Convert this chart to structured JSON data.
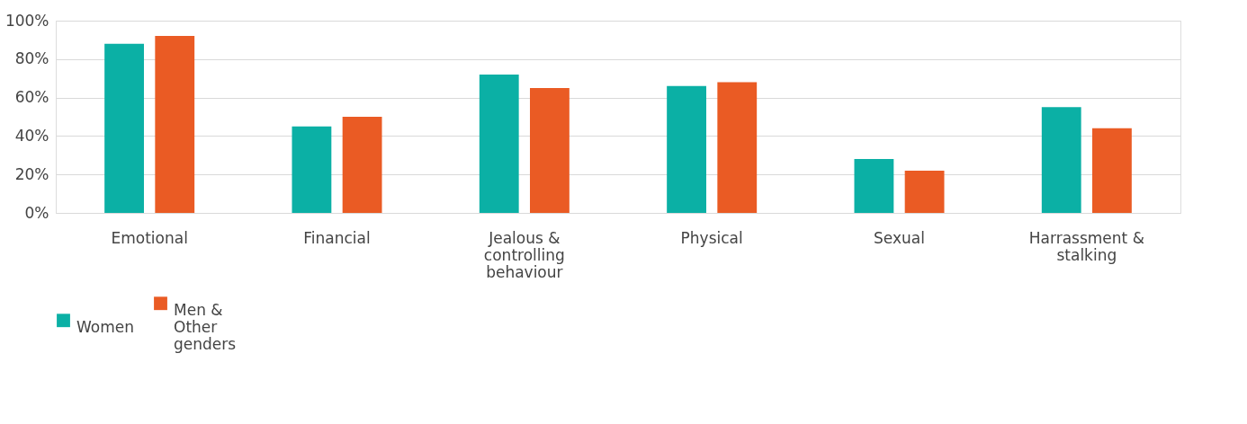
{
  "chart_data": {
    "type": "bar",
    "categories": [
      "Emotional",
      "Financial",
      "Jealous & controlling behaviour",
      "Physical",
      "Sexual",
      "Harrassment & stalking"
    ],
    "series": [
      {
        "name": "Women",
        "color": "#0bb0a5",
        "values": [
          88,
          45,
          72,
          66,
          28,
          55
        ]
      },
      {
        "name": "Men & Other genders",
        "color": "#ea5b24",
        "values": [
          92,
          50,
          65,
          68,
          22,
          44
        ]
      }
    ],
    "ylim": [
      0,
      100
    ],
    "yticks": [
      {
        "value": 0,
        "label": "0%"
      },
      {
        "value": 20,
        "label": "20%"
      },
      {
        "value": 40,
        "label": "40%"
      },
      {
        "value": 60,
        "label": "60%"
      },
      {
        "value": 80,
        "label": "80%"
      },
      {
        "value": 100,
        "label": "100%"
      }
    ],
    "grid": "y",
    "legend": "bottom"
  }
}
